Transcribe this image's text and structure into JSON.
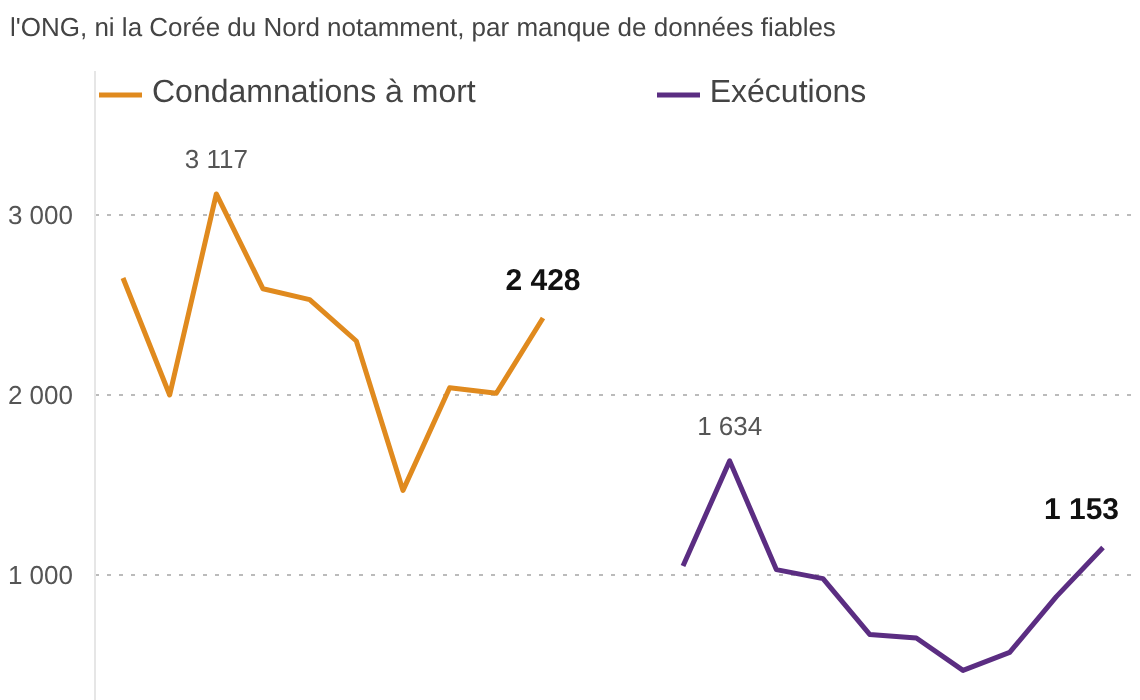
{
  "chart_data": {
    "type": "line",
    "subtitle": "l'ONG, ni la Corée du Nord notamment, par manque de données fiables",
    "categories": [
      null,
      null,
      null,
      null,
      null,
      null,
      null,
      null,
      null,
      null,
      null,
      null,
      null,
      null,
      null,
      null,
      null,
      null,
      null,
      null,
      null,
      null
    ],
    "series": [
      {
        "name": "Condamnations à mort",
        "color": "#e08a1e",
        "values": [
          2650,
          2000,
          3117,
          2590,
          2530,
          2300,
          1470,
          2040,
          2010,
          2428,
          null,
          null,
          null,
          null,
          null,
          null,
          null,
          null,
          null,
          null,
          null,
          null
        ],
        "value_labels": [
          null,
          null,
          "3 117",
          null,
          null,
          null,
          null,
          null,
          null,
          "2 428",
          null,
          null,
          null,
          null,
          null,
          null,
          null,
          null,
          null,
          null,
          null,
          null
        ]
      },
      {
        "name": "Exécutions",
        "color": "#5b2d82",
        "values": [
          null,
          null,
          null,
          null,
          null,
          null,
          null,
          null,
          null,
          null,
          null,
          null,
          1050,
          1634,
          1030,
          980,
          670,
          650,
          470,
          570,
          880,
          1153
        ],
        "value_labels": [
          null,
          null,
          null,
          null,
          null,
          null,
          null,
          null,
          null,
          null,
          null,
          null,
          null,
          "1 634",
          null,
          null,
          null,
          null,
          null,
          null,
          null,
          "1 153"
        ]
      }
    ],
    "ylim": [
      300,
      3800
    ],
    "yticks": [
      {
        "value": 1000,
        "label": "1 000"
      },
      {
        "value": 2000,
        "label": "2 000"
      },
      {
        "value": 3000,
        "label": "3 000"
      }
    ],
    "grid": "y",
    "legend": "top left",
    "line_style": "solid"
  }
}
